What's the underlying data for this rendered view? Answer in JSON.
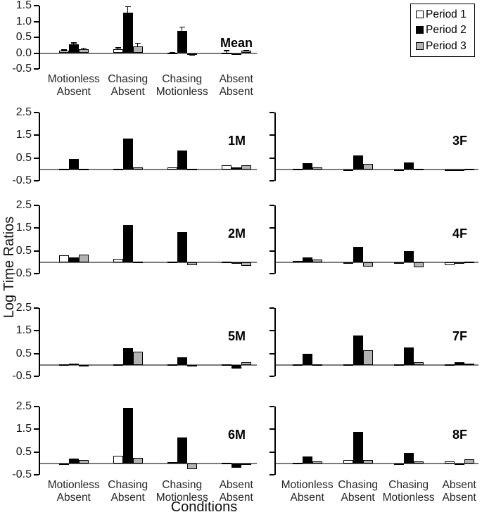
{
  "legend": {
    "items": [
      {
        "label": "Period 1",
        "color": "#ffffff"
      },
      {
        "label": "Period 2",
        "color": "#000000"
      },
      {
        "label": "Period 3",
        "color": "#b3b3b3"
      }
    ]
  },
  "chart_data": {
    "type": "bar",
    "ylabel": "Log Time Ratios",
    "xlabel": "Conditions",
    "legend_position": "top-right",
    "grid": false,
    "categories": [
      [
        "Motionless",
        "Absent"
      ],
      [
        "Chasing",
        "Absent"
      ],
      [
        "Chasing",
        "Motionless"
      ],
      [
        "Absent",
        "Absent"
      ]
    ],
    "panels": [
      {
        "id": "Mean",
        "label": "Mean",
        "ylim": [
          -0.5,
          1.5
        ],
        "yticks": [
          1.5,
          1.0,
          0.5,
          0.0,
          -0.5
        ],
        "series": [
          {
            "name": "Period 1",
            "values": [
              0.08,
              0.12,
              0.02,
              0.02
            ],
            "errors": [
              0.04,
              0.06,
              0.02,
              0.07
            ]
          },
          {
            "name": "Period 2",
            "values": [
              0.28,
              1.27,
              0.69,
              -0.04
            ],
            "errors": [
              0.06,
              0.21,
              0.15,
              0.02
            ]
          },
          {
            "name": "Period 3",
            "values": [
              0.12,
              0.21,
              -0.03,
              0.07
            ],
            "errors": [
              0.05,
              0.12,
              0.04,
              0.03
            ]
          }
        ]
      },
      {
        "id": "1M",
        "label": "1M",
        "ylim": [
          -0.5,
          2.5
        ],
        "yticks": [
          2.5,
          1.5,
          0.5,
          -0.5
        ],
        "series": [
          {
            "name": "Period 1",
            "values": [
              0.03,
              0.04,
              0.1,
              0.18
            ]
          },
          {
            "name": "Period 2",
            "values": [
              0.45,
              1.35,
              0.82,
              0.1
            ]
          },
          {
            "name": "Period 3",
            "values": [
              0.04,
              0.08,
              0.04,
              0.18
            ]
          }
        ]
      },
      {
        "id": "3F",
        "label": "3F",
        "ylim": [
          -0.5,
          2.5
        ],
        "yticks": [
          2.5,
          1.5,
          0.5,
          -0.5
        ],
        "series": [
          {
            "name": "Period 1",
            "values": [
              0.02,
              -0.05,
              -0.05,
              -0.05
            ]
          },
          {
            "name": "Period 2",
            "values": [
              0.28,
              0.62,
              0.3,
              -0.03
            ]
          },
          {
            "name": "Period 3",
            "values": [
              0.1,
              0.25,
              0.03,
              0.04
            ]
          }
        ]
      },
      {
        "id": "2M",
        "label": "2M",
        "ylim": [
          -0.5,
          2.5
        ],
        "yticks": [
          2.5,
          1.5,
          0.5,
          -0.5
        ],
        "series": [
          {
            "name": "Period 1",
            "values": [
              0.3,
              0.15,
              0.02,
              0.03
            ]
          },
          {
            "name": "Period 2",
            "values": [
              0.22,
              1.62,
              1.32,
              -0.03
            ]
          },
          {
            "name": "Period 3",
            "values": [
              0.35,
              0.03,
              -0.12,
              -0.15
            ]
          }
        ]
      },
      {
        "id": "4F",
        "label": "4F",
        "ylim": [
          -0.5,
          2.5
        ],
        "yticks": [
          2.5,
          1.5,
          0.5,
          -0.5
        ],
        "series": [
          {
            "name": "Period 1",
            "values": [
              0.07,
              -0.03,
              -0.07,
              -0.12
            ]
          },
          {
            "name": "Period 2",
            "values": [
              0.2,
              0.68,
              0.5,
              -0.08
            ]
          },
          {
            "name": "Period 3",
            "values": [
              0.13,
              -0.18,
              -0.22,
              0.02
            ]
          }
        ]
      },
      {
        "id": "5M",
        "label": "5M",
        "ylim": [
          -0.5,
          2.5
        ],
        "yticks": [
          2.5,
          1.5,
          0.5,
          -0.5
        ],
        "series": [
          {
            "name": "Period 1",
            "values": [
              0.0,
              0.02,
              0.01,
              0.01
            ]
          },
          {
            "name": "Period 2",
            "values": [
              0.06,
              0.75,
              0.35,
              -0.15
            ]
          },
          {
            "name": "Period 3",
            "values": [
              -0.03,
              0.58,
              -0.05,
              0.12
            ]
          }
        ]
      },
      {
        "id": "7F",
        "label": "7F",
        "ylim": [
          -0.5,
          2.5
        ],
        "yticks": [
          2.5,
          1.5,
          0.5,
          -0.5
        ],
        "series": [
          {
            "name": "Period 1",
            "values": [
              0.01,
              0.01,
              0.01,
              0.01
            ]
          },
          {
            "name": "Period 2",
            "values": [
              0.5,
              1.3,
              0.78,
              0.12
            ]
          },
          {
            "name": "Period 3",
            "values": [
              0.03,
              0.63,
              0.12,
              0.06
            ]
          }
        ]
      },
      {
        "id": "6M",
        "label": "6M",
        "ylim": [
          -0.5,
          2.5
        ],
        "yticks": [
          2.5,
          1.5,
          0.5,
          -0.5
        ],
        "series": [
          {
            "name": "Period 1",
            "values": [
              -0.03,
              0.35,
              0.05,
              0.02
            ]
          },
          {
            "name": "Period 2",
            "values": [
              0.2,
              2.45,
              1.15,
              -0.18
            ]
          },
          {
            "name": "Period 3",
            "values": [
              0.15,
              0.25,
              -0.25,
              -0.05
            ]
          }
        ]
      },
      {
        "id": "8F",
        "label": "8F",
        "ylim": [
          -0.5,
          2.5
        ],
        "yticks": [
          2.5,
          1.5,
          0.5,
          -0.5
        ],
        "series": [
          {
            "name": "Period 1",
            "values": [
              0.02,
              0.15,
              -0.08,
              0.08
            ]
          },
          {
            "name": "Period 2",
            "values": [
              0.3,
              1.4,
              0.45,
              -0.05
            ]
          },
          {
            "name": "Period 3",
            "values": [
              0.08,
              0.15,
              0.1,
              0.17
            ]
          }
        ]
      }
    ]
  }
}
